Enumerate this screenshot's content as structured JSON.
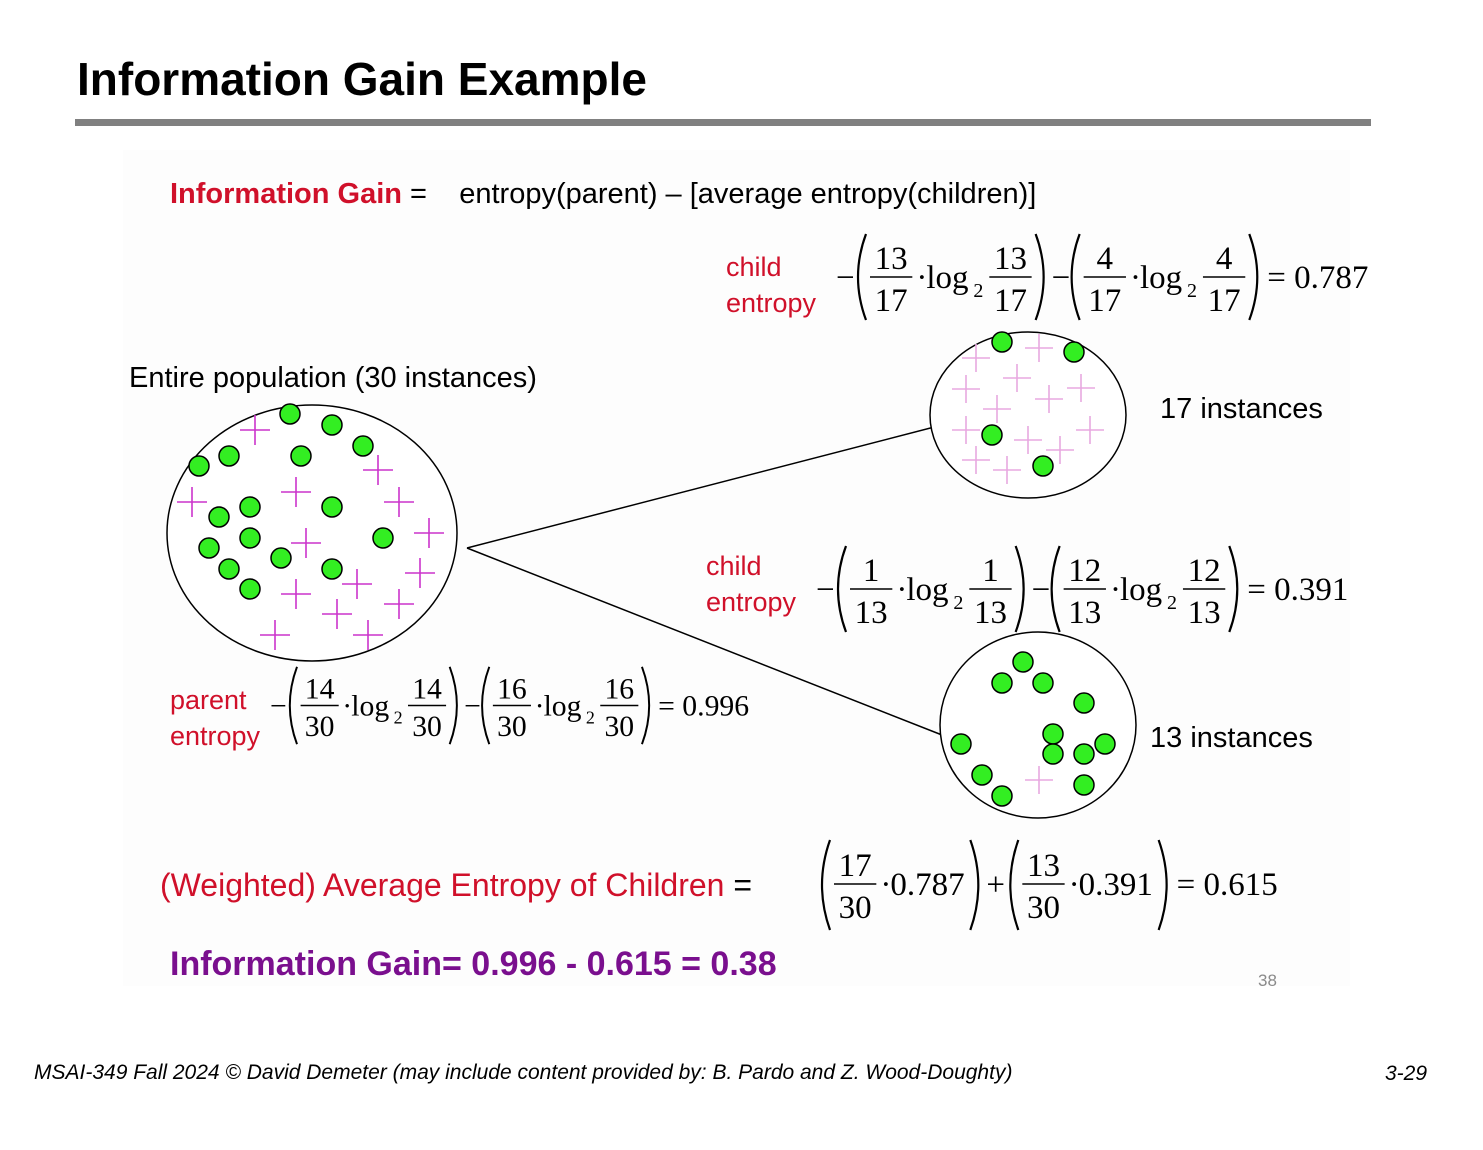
{
  "title": "Information Gain Example",
  "definition": {
    "term": "Information Gain",
    "equals": " =",
    "rhs": "entropy(parent) – [average entropy(children)]"
  },
  "parent": {
    "caption": "Entire population (30 instances)",
    "label_line1": "parent",
    "label_line2": "entropy",
    "formula": {
      "minus": "−",
      "term1": {
        "num": "14",
        "den": "30",
        "lognum": "14",
        "logden": "30"
      },
      "term2": {
        "num": "16",
        "den": "30",
        "lognum": "16",
        "logden": "30"
      },
      "log": "log",
      "base": "2",
      "result": "= 0.996"
    }
  },
  "child_top": {
    "caption": "17 instances",
    "label_line1": "child",
    "label_line2": "entropy",
    "formula": {
      "minus": "−",
      "term1": {
        "num": "13",
        "den": "17",
        "lognum": "13",
        "logden": "17"
      },
      "term2": {
        "num": "4",
        "den": "17",
        "lognum": "4",
        "logden": "17"
      },
      "log": "log",
      "base": "2",
      "result": "= 0.787"
    }
  },
  "child_bottom": {
    "caption": "13 instances",
    "label_line1": "child",
    "label_line2": "entropy",
    "formula": {
      "minus": "−",
      "term1": {
        "num": "1",
        "den": "13",
        "lognum": "1",
        "logden": "13"
      },
      "term2": {
        "num": "12",
        "den": "13",
        "lognum": "12",
        "logden": "13"
      },
      "log": "log",
      "base": "2",
      "result": "= 0.391"
    }
  },
  "weighted": {
    "label": "(Weighted) Average Entropy of Children",
    "equals": "=",
    "term1": {
      "num": "17",
      "den": "30",
      "factor": "0.787"
    },
    "term2": {
      "num": "13",
      "den": "30",
      "factor": "0.391"
    },
    "plus": "+",
    "result": "= 0.615"
  },
  "final": "Information Gain= 0.996 - 0.615 = 0.38",
  "slide_number": "38",
  "footer": "MSAI-349 Fall 2024 © David Demeter (may include content provided by: B. Pardo and Z. Wood-Doughty)",
  "page": "3-29",
  "colors": {
    "label_red": "#d0102a",
    "final_purple": "#7a0f8e",
    "dot_green": "#33ee22",
    "plus_magenta": "#cc33cc",
    "plus_light": "#e8a8e0",
    "rule_gray": "#808080"
  }
}
